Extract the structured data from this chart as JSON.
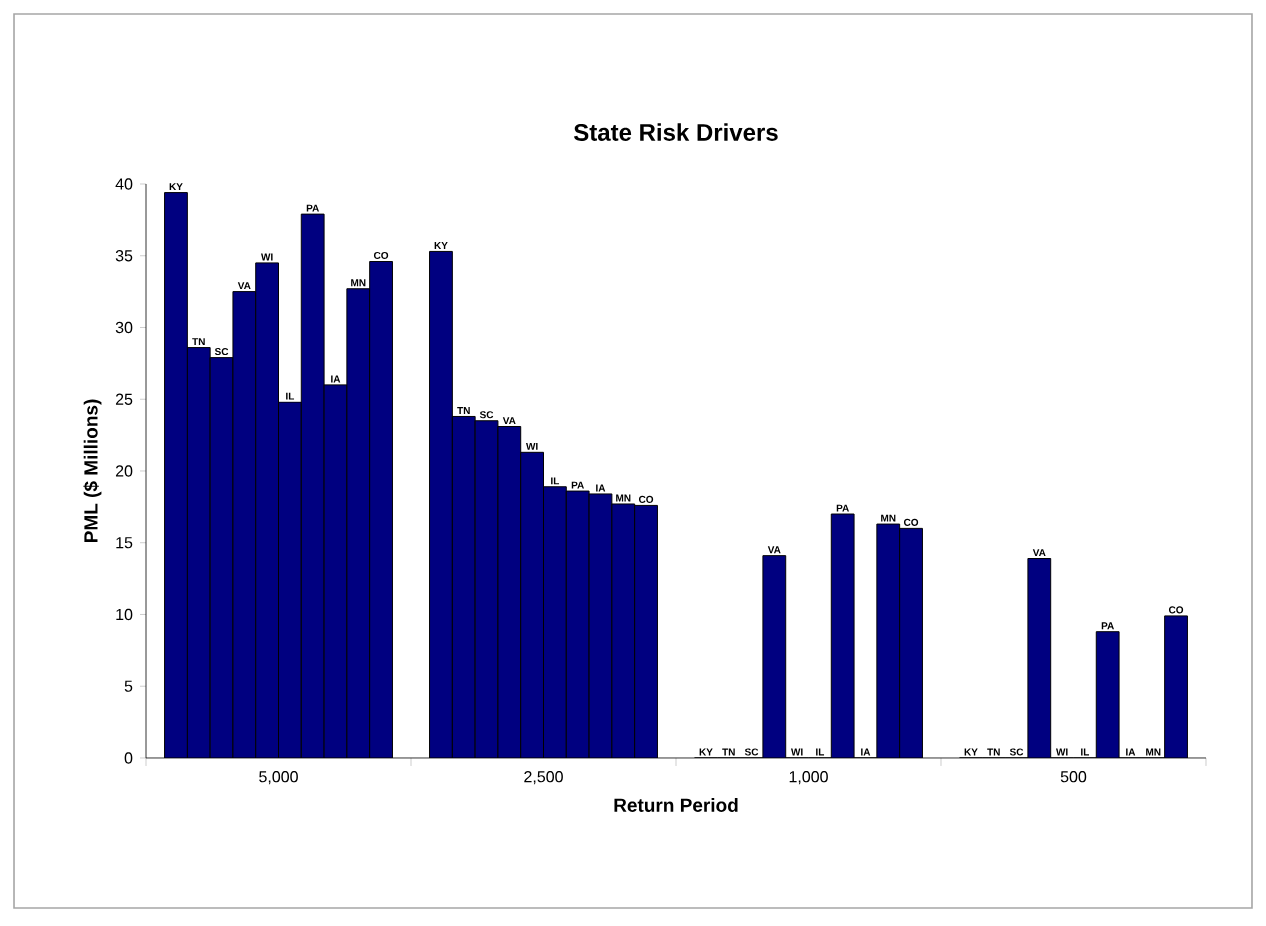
{
  "chart_data": {
    "type": "bar",
    "title": "State Risk Drivers",
    "xlabel": "Return Period",
    "ylabel": "PML ($ Millions)",
    "categories": [
      "5,000",
      "2,500",
      "1,000",
      "500"
    ],
    "series": [
      {
        "name": "KY",
        "color": "#000080",
        "values": [
          39.4,
          35.3,
          0,
          0
        ]
      },
      {
        "name": "TN",
        "color": "#000080",
        "values": [
          28.6,
          23.8,
          0,
          0
        ]
      },
      {
        "name": "SC",
        "color": "#000080",
        "values": [
          27.9,
          23.5,
          0,
          0
        ]
      },
      {
        "name": "VA",
        "color": "#000080",
        "values": [
          32.5,
          23.1,
          14.1,
          13.9
        ]
      },
      {
        "name": "WI",
        "color": "#000080",
        "values": [
          34.5,
          21.3,
          0,
          0
        ]
      },
      {
        "name": "IL",
        "color": "#000080",
        "values": [
          24.8,
          18.9,
          0,
          0
        ]
      },
      {
        "name": "PA",
        "color": "#000080",
        "values": [
          37.9,
          18.6,
          17.0,
          8.8
        ]
      },
      {
        "name": "IA",
        "color": "#000080",
        "values": [
          26.0,
          18.4,
          0,
          0
        ]
      },
      {
        "name": "MN",
        "color": "#000080",
        "values": [
          32.7,
          17.7,
          16.3,
          0
        ]
      },
      {
        "name": "CO",
        "color": "#000080",
        "values": [
          34.6,
          17.6,
          16.0,
          9.9
        ]
      }
    ],
    "ylim": [
      0,
      40
    ],
    "yticks": [
      0,
      5,
      10,
      15,
      20,
      25,
      30,
      35,
      40
    ]
  }
}
